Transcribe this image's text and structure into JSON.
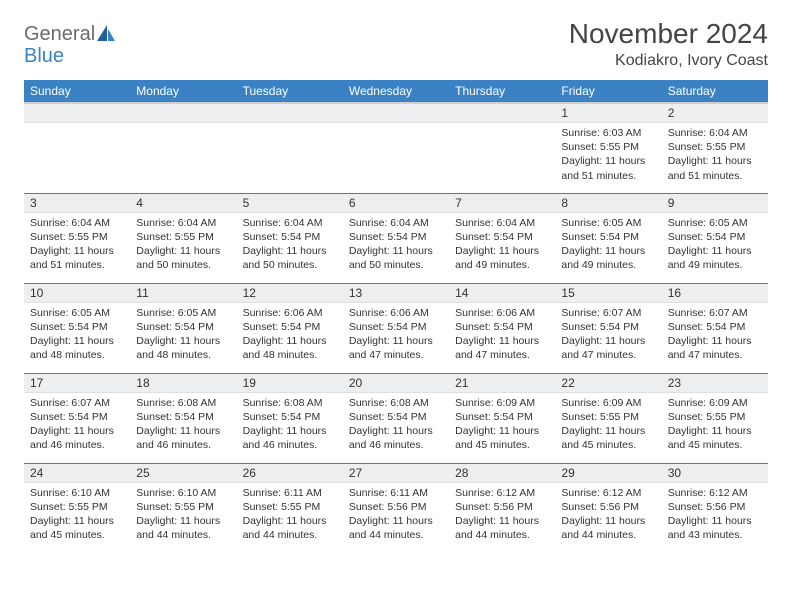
{
  "brand": {
    "line1": "General",
    "line2": "Blue"
  },
  "title": "November 2024",
  "location": "Kodiakro, Ivory Coast",
  "colors": {
    "accent": "#3a82c4",
    "header_text": "#ffffff",
    "daynum_bg": "#eceef0",
    "border": "#3a82c4",
    "text": "#333333",
    "logo_gray": "#6b6b6b"
  },
  "weekdays": [
    "Sunday",
    "Monday",
    "Tuesday",
    "Wednesday",
    "Thursday",
    "Friday",
    "Saturday"
  ],
  "weeks": [
    [
      null,
      null,
      null,
      null,
      null,
      {
        "n": "1",
        "sunrise": "6:03 AM",
        "sunset": "5:55 PM",
        "daylight": "11 hours and 51 minutes."
      },
      {
        "n": "2",
        "sunrise": "6:04 AM",
        "sunset": "5:55 PM",
        "daylight": "11 hours and 51 minutes."
      }
    ],
    [
      {
        "n": "3",
        "sunrise": "6:04 AM",
        "sunset": "5:55 PM",
        "daylight": "11 hours and 51 minutes."
      },
      {
        "n": "4",
        "sunrise": "6:04 AM",
        "sunset": "5:55 PM",
        "daylight": "11 hours and 50 minutes."
      },
      {
        "n": "5",
        "sunrise": "6:04 AM",
        "sunset": "5:54 PM",
        "daylight": "11 hours and 50 minutes."
      },
      {
        "n": "6",
        "sunrise": "6:04 AM",
        "sunset": "5:54 PM",
        "daylight": "11 hours and 50 minutes."
      },
      {
        "n": "7",
        "sunrise": "6:04 AM",
        "sunset": "5:54 PM",
        "daylight": "11 hours and 49 minutes."
      },
      {
        "n": "8",
        "sunrise": "6:05 AM",
        "sunset": "5:54 PM",
        "daylight": "11 hours and 49 minutes."
      },
      {
        "n": "9",
        "sunrise": "6:05 AM",
        "sunset": "5:54 PM",
        "daylight": "11 hours and 49 minutes."
      }
    ],
    [
      {
        "n": "10",
        "sunrise": "6:05 AM",
        "sunset": "5:54 PM",
        "daylight": "11 hours and 48 minutes."
      },
      {
        "n": "11",
        "sunrise": "6:05 AM",
        "sunset": "5:54 PM",
        "daylight": "11 hours and 48 minutes."
      },
      {
        "n": "12",
        "sunrise": "6:06 AM",
        "sunset": "5:54 PM",
        "daylight": "11 hours and 48 minutes."
      },
      {
        "n": "13",
        "sunrise": "6:06 AM",
        "sunset": "5:54 PM",
        "daylight": "11 hours and 47 minutes."
      },
      {
        "n": "14",
        "sunrise": "6:06 AM",
        "sunset": "5:54 PM",
        "daylight": "11 hours and 47 minutes."
      },
      {
        "n": "15",
        "sunrise": "6:07 AM",
        "sunset": "5:54 PM",
        "daylight": "11 hours and 47 minutes."
      },
      {
        "n": "16",
        "sunrise": "6:07 AM",
        "sunset": "5:54 PM",
        "daylight": "11 hours and 47 minutes."
      }
    ],
    [
      {
        "n": "17",
        "sunrise": "6:07 AM",
        "sunset": "5:54 PM",
        "daylight": "11 hours and 46 minutes."
      },
      {
        "n": "18",
        "sunrise": "6:08 AM",
        "sunset": "5:54 PM",
        "daylight": "11 hours and 46 minutes."
      },
      {
        "n": "19",
        "sunrise": "6:08 AM",
        "sunset": "5:54 PM",
        "daylight": "11 hours and 46 minutes."
      },
      {
        "n": "20",
        "sunrise": "6:08 AM",
        "sunset": "5:54 PM",
        "daylight": "11 hours and 46 minutes."
      },
      {
        "n": "21",
        "sunrise": "6:09 AM",
        "sunset": "5:54 PM",
        "daylight": "11 hours and 45 minutes."
      },
      {
        "n": "22",
        "sunrise": "6:09 AM",
        "sunset": "5:55 PM",
        "daylight": "11 hours and 45 minutes."
      },
      {
        "n": "23",
        "sunrise": "6:09 AM",
        "sunset": "5:55 PM",
        "daylight": "11 hours and 45 minutes."
      }
    ],
    [
      {
        "n": "24",
        "sunrise": "6:10 AM",
        "sunset": "5:55 PM",
        "daylight": "11 hours and 45 minutes."
      },
      {
        "n": "25",
        "sunrise": "6:10 AM",
        "sunset": "5:55 PM",
        "daylight": "11 hours and 44 minutes."
      },
      {
        "n": "26",
        "sunrise": "6:11 AM",
        "sunset": "5:55 PM",
        "daylight": "11 hours and 44 minutes."
      },
      {
        "n": "27",
        "sunrise": "6:11 AM",
        "sunset": "5:56 PM",
        "daylight": "11 hours and 44 minutes."
      },
      {
        "n": "28",
        "sunrise": "6:12 AM",
        "sunset": "5:56 PM",
        "daylight": "11 hours and 44 minutes."
      },
      {
        "n": "29",
        "sunrise": "6:12 AM",
        "sunset": "5:56 PM",
        "daylight": "11 hours and 44 minutes."
      },
      {
        "n": "30",
        "sunrise": "6:12 AM",
        "sunset": "5:56 PM",
        "daylight": "11 hours and 43 minutes."
      }
    ]
  ],
  "labels": {
    "sunrise": "Sunrise: ",
    "sunset": "Sunset: ",
    "daylight": "Daylight: "
  }
}
